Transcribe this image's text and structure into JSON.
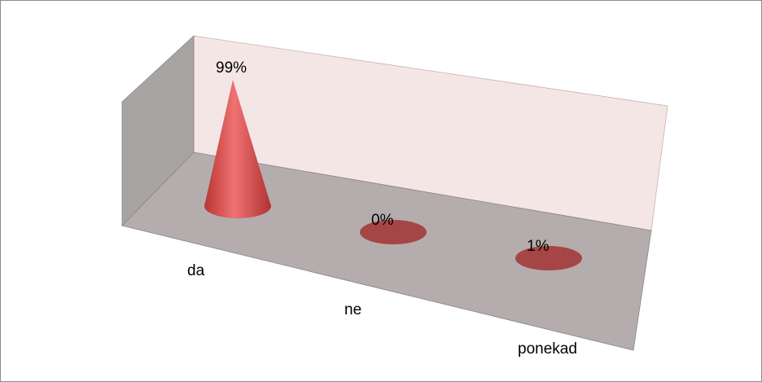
{
  "chart_data": {
    "type": "cone",
    "categories": [
      "da",
      "ne",
      "ponekad"
    ],
    "values": [
      99,
      0,
      1
    ],
    "value_labels": [
      "99%",
      "0%",
      "1%"
    ],
    "color": "#d9534f"
  }
}
